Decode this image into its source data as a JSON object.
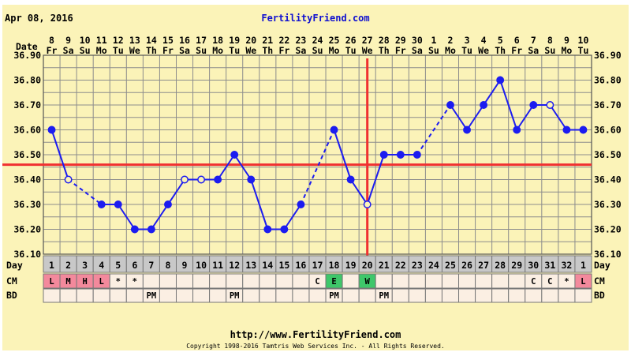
{
  "chart_data": {
    "type": "line",
    "title_date": "Apr 08, 2016",
    "brand": "FertilityFriend.com",
    "header_label": "Date",
    "row_label_day": "Day",
    "row_label_cm": "CM",
    "row_label_bd": "BD",
    "dates": [
      "8",
      "9",
      "10",
      "11",
      "12",
      "13",
      "14",
      "15",
      "16",
      "17",
      "18",
      "19",
      "20",
      "21",
      "22",
      "23",
      "24",
      "25",
      "26",
      "27",
      "28",
      "29",
      "30",
      "1",
      "2",
      "3",
      "4",
      "5",
      "6",
      "7",
      "8",
      "9",
      "10"
    ],
    "weekdays": [
      "Fr",
      "Sa",
      "Su",
      "Mo",
      "Tu",
      "We",
      "Th",
      "Fr",
      "Sa",
      "Su",
      "Mo",
      "Tu",
      "We",
      "Th",
      "Fr",
      "Sa",
      "Su",
      "Mo",
      "Tu",
      "We",
      "Th",
      "Fr",
      "Sa",
      "Su",
      "Mo",
      "Tu",
      "We",
      "Th",
      "Fr",
      "Sa",
      "Su",
      "Mo",
      "Tu"
    ],
    "cycle_days": [
      "1",
      "2",
      "3",
      "4",
      "5",
      "6",
      "7",
      "8",
      "9",
      "10",
      "11",
      "12",
      "13",
      "14",
      "15",
      "16",
      "17",
      "18",
      "19",
      "20",
      "21",
      "22",
      "23",
      "24",
      "25",
      "26",
      "27",
      "28",
      "29",
      "30",
      "31",
      "32",
      "1"
    ],
    "y_ticks": [
      "36.10",
      "36.20",
      "36.30",
      "36.40",
      "36.50",
      "36.60",
      "36.70",
      "36.80",
      "36.90"
    ],
    "ylim": [
      36.1,
      36.9
    ],
    "temps": [
      36.6,
      36.4,
      null,
      36.3,
      36.3,
      36.2,
      36.2,
      36.3,
      36.4,
      36.4,
      36.4,
      36.5,
      36.4,
      36.2,
      36.2,
      36.3,
      null,
      36.6,
      36.4,
      36.3,
      36.5,
      36.5,
      36.5,
      null,
      36.7,
      36.6,
      36.7,
      36.8,
      36.6,
      36.7,
      36.7,
      36.6,
      36.6
    ],
    "open_points": [
      1,
      8,
      9,
      19,
      30
    ],
    "dashed_segments": [
      [
        1,
        3
      ],
      [
        15,
        17
      ],
      [
        22,
        24
      ]
    ],
    "coverline": 36.46,
    "ovulation_day_index": 19,
    "cm": [
      "L",
      "M",
      "H",
      "L",
      "*",
      "*",
      "",
      "",
      "",
      "",
      "",
      "",
      "",
      "",
      "",
      "",
      "C",
      "E",
      "",
      "W",
      "",
      "",
      "",
      "",
      "",
      "",
      "",
      "",
      "",
      "C",
      "C",
      "*",
      "L"
    ],
    "bd": [
      "",
      "",
      "",
      "",
      "",
      "",
      "PM",
      "",
      "",
      "",
      "",
      "PM",
      "",
      "",
      "",
      "",
      "",
      "PM",
      "",
      "",
      "PM",
      "",
      "",
      "",
      "",
      "",
      "",
      "",
      "",
      "",
      "",
      "",
      ""
    ],
    "colors": {
      "background": "#fbf3b8",
      "grid": "#8c8c8c",
      "line": "#1c1cf0",
      "coverline": "#f03030",
      "day_row": "#c8c8c8",
      "cm_row": "#fbefe3",
      "cm_red": "#f3899c",
      "cm_green": "#3ec76a",
      "brand": "#1010d0"
    }
  },
  "footer": {
    "url": "http://www.FertilityFriend.com",
    "copyright": "Copyright 1998-2016 Tamtris Web Services Inc. - All Rights Reserved."
  }
}
